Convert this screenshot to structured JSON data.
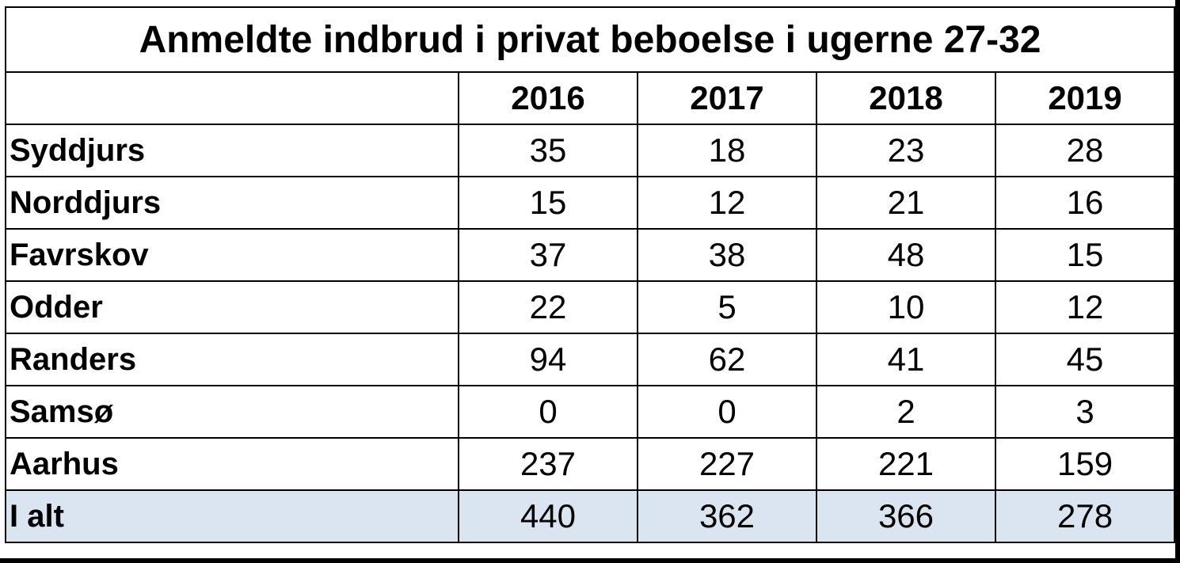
{
  "table": {
    "title": "Anmeldte indbrud i privat beboelse i ugerne 27-32",
    "corner": "",
    "years": [
      "2016",
      "2017",
      "2018",
      "2019"
    ],
    "rows": [
      {
        "label": "Syddjurs",
        "values": [
          "35",
          "18",
          "23",
          "28"
        ]
      },
      {
        "label": "Norddjurs",
        "values": [
          "15",
          "12",
          "21",
          "16"
        ]
      },
      {
        "label": "Favrskov",
        "values": [
          "37",
          "38",
          "48",
          "15"
        ]
      },
      {
        "label": "Odder",
        "values": [
          "22",
          "5",
          "10",
          "12"
        ]
      },
      {
        "label": "Randers",
        "values": [
          "94",
          "62",
          "41",
          "45"
        ]
      },
      {
        "label": "Samsø",
        "values": [
          "0",
          "0",
          "2",
          "3"
        ]
      },
      {
        "label": "Aarhus",
        "values": [
          "237",
          "227",
          "221",
          "159"
        ]
      }
    ],
    "total": {
      "label": "I alt",
      "values": [
        "440",
        "362",
        "366",
        "278"
      ]
    }
  },
  "colors": {
    "total_row_bg": "#dbe4f1",
    "border": "#000000"
  }
}
